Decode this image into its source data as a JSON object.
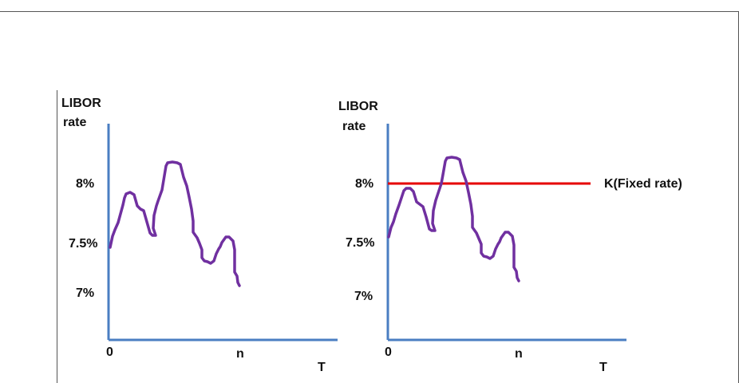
{
  "left_panel": {
    "ylabel_line1": "LIBOR",
    "ylabel_line2": "rate",
    "y_ticks": [
      "8%",
      "7.5%",
      "7%"
    ],
    "origin_label": "0",
    "n_label": "n",
    "x_label": "T"
  },
  "right_panel": {
    "ylabel_line1": "LIBOR",
    "ylabel_line2": "rate",
    "y_ticks": [
      "8%",
      "7.5%",
      "7%"
    ],
    "origin_label": "0",
    "n_label": "n",
    "x_label": "T",
    "fixed_rate_label": "K(Fixed rate)"
  },
  "colors": {
    "axis": "#4a7ec2",
    "path": "#7030a0",
    "fixed_rate_line": "#e60000"
  }
}
